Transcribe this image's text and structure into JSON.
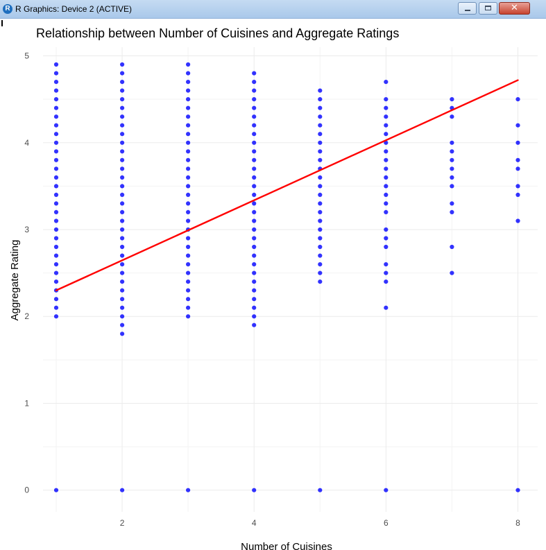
{
  "window": {
    "title": "R Graphics: Device 2 (ACTIVE)",
    "icon_name": "r-logo-icon",
    "icon_letter": "R",
    "controls": {
      "minimize_icon": "minimize-icon",
      "maximize_icon": "maximize-icon",
      "close_icon": "close-icon",
      "close_glyph": "✕"
    }
  },
  "colors": {
    "points": "#0000ff",
    "trend_line": "#ff0000",
    "grid": "#ebebeb",
    "text": "#000000",
    "tick_text": "#4d4d4d"
  },
  "chart_data": {
    "type": "scatter",
    "title": "Relationship between Number of Cuisines and Aggregate Ratings",
    "xlabel": "Number of Cuisines",
    "ylabel": "Aggregate Rating",
    "xlim": [
      0.8,
      8.3
    ],
    "ylim": [
      -0.25,
      5.1
    ],
    "x_ticks": [
      2,
      4,
      6,
      8
    ],
    "y_ticks": [
      0,
      1,
      2,
      3,
      4,
      5
    ],
    "grid": true,
    "legend": "none",
    "series": [
      {
        "points": [
          [
            1,
            0
          ],
          [
            1,
            2.0
          ],
          [
            1,
            2.1
          ],
          [
            1,
            2.2
          ],
          [
            1,
            2.3
          ],
          [
            1,
            2.4
          ],
          [
            1,
            2.5
          ],
          [
            1,
            2.6
          ],
          [
            1,
            2.7
          ],
          [
            1,
            2.8
          ],
          [
            1,
            2.9
          ],
          [
            1,
            3.0
          ],
          [
            1,
            3.1
          ],
          [
            1,
            3.2
          ],
          [
            1,
            3.3
          ],
          [
            1,
            3.4
          ],
          [
            1,
            3.5
          ],
          [
            1,
            3.6
          ],
          [
            1,
            3.7
          ],
          [
            1,
            3.8
          ],
          [
            1,
            3.9
          ],
          [
            1,
            4.0
          ],
          [
            1,
            4.1
          ],
          [
            1,
            4.2
          ],
          [
            1,
            4.3
          ],
          [
            1,
            4.4
          ],
          [
            1,
            4.5
          ],
          [
            1,
            4.6
          ],
          [
            1,
            4.7
          ],
          [
            1,
            4.8
          ],
          [
            1,
            4.9
          ],
          [
            2,
            0
          ],
          [
            2,
            1.8
          ],
          [
            2,
            1.9
          ],
          [
            2,
            2.0
          ],
          [
            2,
            2.1
          ],
          [
            2,
            2.2
          ],
          [
            2,
            2.3
          ],
          [
            2,
            2.4
          ],
          [
            2,
            2.5
          ],
          [
            2,
            2.6
          ],
          [
            2,
            2.7
          ],
          [
            2,
            2.8
          ],
          [
            2,
            2.9
          ],
          [
            2,
            3.0
          ],
          [
            2,
            3.1
          ],
          [
            2,
            3.2
          ],
          [
            2,
            3.3
          ],
          [
            2,
            3.4
          ],
          [
            2,
            3.5
          ],
          [
            2,
            3.6
          ],
          [
            2,
            3.7
          ],
          [
            2,
            3.8
          ],
          [
            2,
            3.9
          ],
          [
            2,
            4.0
          ],
          [
            2,
            4.1
          ],
          [
            2,
            4.2
          ],
          [
            2,
            4.3
          ],
          [
            2,
            4.4
          ],
          [
            2,
            4.5
          ],
          [
            2,
            4.6
          ],
          [
            2,
            4.7
          ],
          [
            2,
            4.8
          ],
          [
            2,
            4.9
          ],
          [
            3,
            0
          ],
          [
            3,
            2.0
          ],
          [
            3,
            2.1
          ],
          [
            3,
            2.2
          ],
          [
            3,
            2.3
          ],
          [
            3,
            2.4
          ],
          [
            3,
            2.5
          ],
          [
            3,
            2.6
          ],
          [
            3,
            2.7
          ],
          [
            3,
            2.8
          ],
          [
            3,
            2.9
          ],
          [
            3,
            3.0
          ],
          [
            3,
            3.1
          ],
          [
            3,
            3.2
          ],
          [
            3,
            3.3
          ],
          [
            3,
            3.4
          ],
          [
            3,
            3.5
          ],
          [
            3,
            3.6
          ],
          [
            3,
            3.7
          ],
          [
            3,
            3.8
          ],
          [
            3,
            3.9
          ],
          [
            3,
            4.0
          ],
          [
            3,
            4.1
          ],
          [
            3,
            4.2
          ],
          [
            3,
            4.3
          ],
          [
            3,
            4.4
          ],
          [
            3,
            4.5
          ],
          [
            3,
            4.6
          ],
          [
            3,
            4.7
          ],
          [
            3,
            4.8
          ],
          [
            3,
            4.9
          ],
          [
            4,
            0
          ],
          [
            4,
            1.9
          ],
          [
            4,
            2.0
          ],
          [
            4,
            2.1
          ],
          [
            4,
            2.2
          ],
          [
            4,
            2.3
          ],
          [
            4,
            2.4
          ],
          [
            4,
            2.5
          ],
          [
            4,
            2.6
          ],
          [
            4,
            2.7
          ],
          [
            4,
            2.8
          ],
          [
            4,
            2.9
          ],
          [
            4,
            3.0
          ],
          [
            4,
            3.1
          ],
          [
            4,
            3.2
          ],
          [
            4,
            3.3
          ],
          [
            4,
            3.4
          ],
          [
            4,
            3.5
          ],
          [
            4,
            3.6
          ],
          [
            4,
            3.7
          ],
          [
            4,
            3.8
          ],
          [
            4,
            3.9
          ],
          [
            4,
            4.0
          ],
          [
            4,
            4.1
          ],
          [
            4,
            4.2
          ],
          [
            4,
            4.3
          ],
          [
            4,
            4.4
          ],
          [
            4,
            4.5
          ],
          [
            4,
            4.6
          ],
          [
            4,
            4.7
          ],
          [
            4,
            4.8
          ],
          [
            5,
            0
          ],
          [
            5,
            2.4
          ],
          [
            5,
            2.5
          ],
          [
            5,
            2.6
          ],
          [
            5,
            2.7
          ],
          [
            5,
            2.8
          ],
          [
            5,
            2.9
          ],
          [
            5,
            3.0
          ],
          [
            5,
            3.1
          ],
          [
            5,
            3.2
          ],
          [
            5,
            3.3
          ],
          [
            5,
            3.4
          ],
          [
            5,
            3.5
          ],
          [
            5,
            3.6
          ],
          [
            5,
            3.7
          ],
          [
            5,
            3.8
          ],
          [
            5,
            3.9
          ],
          [
            5,
            4.0
          ],
          [
            5,
            4.1
          ],
          [
            5,
            4.2
          ],
          [
            5,
            4.3
          ],
          [
            5,
            4.4
          ],
          [
            5,
            4.5
          ],
          [
            5,
            4.6
          ],
          [
            6,
            0
          ],
          [
            6,
            2.1
          ],
          [
            6,
            2.4
          ],
          [
            6,
            2.5
          ],
          [
            6,
            2.6
          ],
          [
            6,
            2.8
          ],
          [
            6,
            2.9
          ],
          [
            6,
            3.0
          ],
          [
            6,
            3.2
          ],
          [
            6,
            3.3
          ],
          [
            6,
            3.4
          ],
          [
            6,
            3.5
          ],
          [
            6,
            3.6
          ],
          [
            6,
            3.7
          ],
          [
            6,
            3.8
          ],
          [
            6,
            3.9
          ],
          [
            6,
            4.0
          ],
          [
            6,
            4.1
          ],
          [
            6,
            4.2
          ],
          [
            6,
            4.3
          ],
          [
            6,
            4.4
          ],
          [
            6,
            4.5
          ],
          [
            6,
            4.7
          ],
          [
            7,
            2.5
          ],
          [
            7,
            2.8
          ],
          [
            7,
            3.2
          ],
          [
            7,
            3.3
          ],
          [
            7,
            3.5
          ],
          [
            7,
            3.6
          ],
          [
            7,
            3.7
          ],
          [
            7,
            3.8
          ],
          [
            7,
            3.9
          ],
          [
            7,
            4.0
          ],
          [
            7,
            4.3
          ],
          [
            7,
            4.4
          ],
          [
            7,
            4.5
          ],
          [
            8,
            0
          ],
          [
            8,
            3.1
          ],
          [
            8,
            3.4
          ],
          [
            8,
            3.5
          ],
          [
            8,
            3.7
          ],
          [
            8,
            3.8
          ],
          [
            8,
            4.0
          ],
          [
            8,
            4.2
          ],
          [
            8,
            4.5
          ]
        ]
      }
    ],
    "trend_line": {
      "x": [
        1,
        8
      ],
      "y": [
        2.3,
        4.72
      ]
    }
  }
}
